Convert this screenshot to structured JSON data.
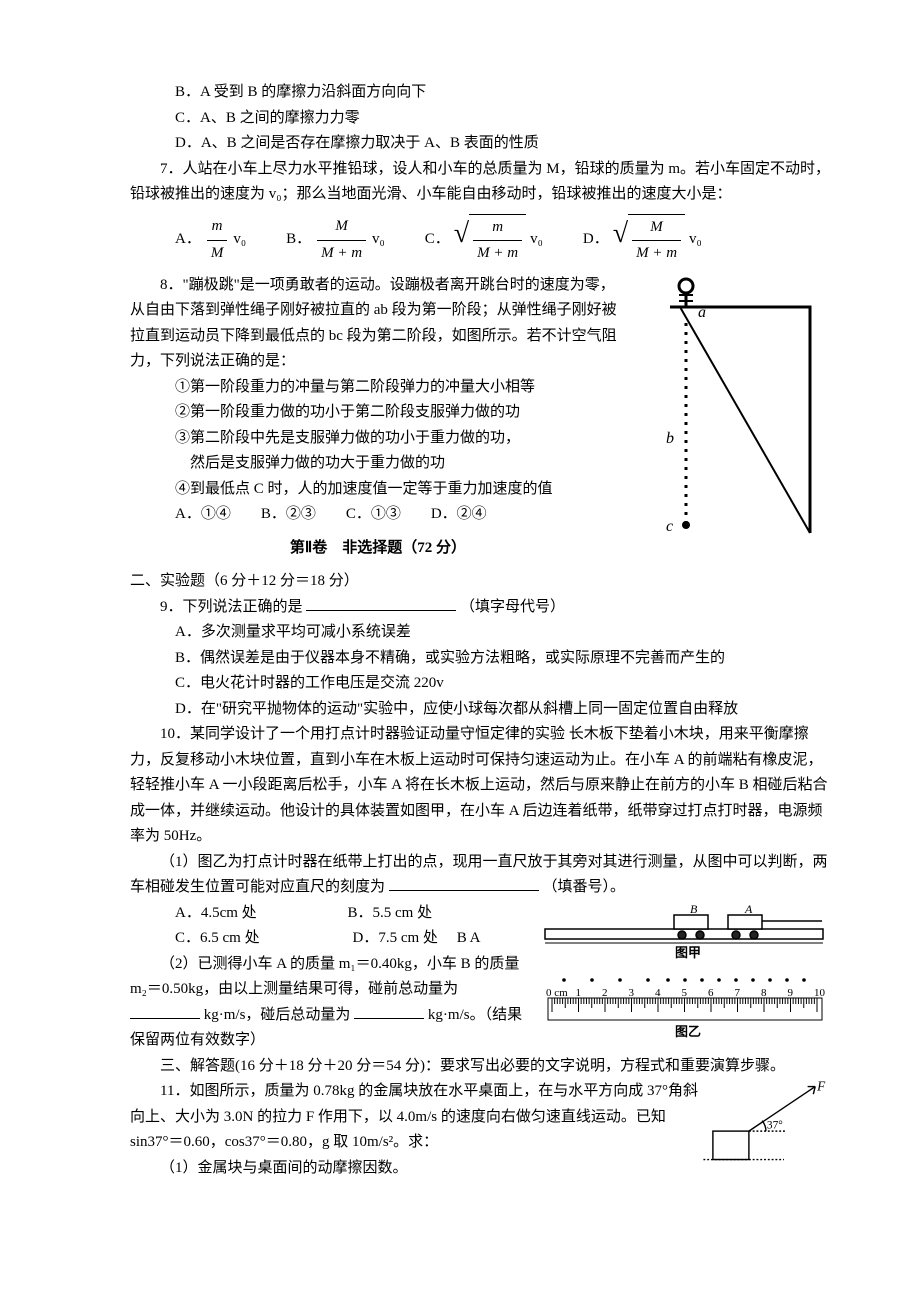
{
  "q6": {
    "B": "B．A 受到 B 的摩擦力沿斜面方向向下",
    "C": "C．A、B 之间的摩擦力力零",
    "D": "D．A、B 之间是否存在摩擦力取决于 A、B 表面的性质"
  },
  "q7": {
    "stem": "7．人站在小车上尽力水平推铅球，设人和小车的总质量为 M，铅球的质量为 m。若小车固定不动时，铅球被推出的速度为 v₀；那么当地面光滑、小车能自由移动时，铅球被推出的速度大小是：",
    "optA_label": "A．",
    "optB_label": "B．",
    "optC_label": "C．",
    "optD_label": "D．",
    "v0": "v₀",
    "A_num": "m",
    "A_den": "M",
    "B_num": "M",
    "B_den": "M + m",
    "C_num": "m",
    "C_den": "M + m",
    "D_num": "M",
    "D_den": "M + m"
  },
  "q8": {
    "stem1": "8．\"蹦极跳\"是一项勇敢者的运动。设蹦极者离开跳台时的速度为零，从自由下落到弹性绳子刚好被拉直的 ab 段为第一阶段；从弹性绳子刚好被拉直到运动员下降到最低点的 bc 段为第二阶段，如图所示。若不计空气阻力，下列说法正确的是：",
    "s1": "①第一阶段重力的冲量与第二阶段弹力的冲量大小相等",
    "s2": "②第一阶段重力做的功小于第二阶段支服弹力做的功",
    "s3": "③第二阶段中先是支服弹力做的功小于重力做的功，",
    "s3b": "然后是支服弹力做的功大于重力做的功",
    "s4": "④到最低点 C 时，人的加速度值一定等于重力加速度的值",
    "opts": "A．①④　　B．②③　　C．①③　　D．②④",
    "fig": {
      "label_a": "a",
      "label_b": "b",
      "label_c": "c",
      "stroke": "#000000",
      "fill": "#222222"
    }
  },
  "part2_title": "第Ⅱ卷　非选择题（72 分）",
  "sec2_head": "二、实验题（6 分＋12 分＝18 分）",
  "q9": {
    "stem": "9．下列说法正确的是",
    "tail": "（填字母代号）",
    "A": "A．多次测量求平均可减小系统误差",
    "B": "B．偶然误差是由于仪器本身不精确，或实验方法粗略，或实际原理不完善而产生的",
    "C": "C．电火花计时器的工作电压是交流 220v",
    "D": "D．在\"研究平抛物体的运动\"实验中，应使小球每次都从斜槽上同一固定位置自由释放"
  },
  "q10": {
    "stem": "10．某同学设计了一个用打点计时器验证动量守恒定律的实验 长木板下垫着小木块，用来平衡摩擦力，反复移动小木块位置，直到小车在木板上运动时可保持匀速运动为止。在小车 A 的前端粘有橡皮泥，轻轻推小车 A 一小段距离后松手，小车 A 将在长木板上运动，然后与原来静止在前方的小车 B 相碰后粘合成一体，并继续运动。他设计的具体装置如图甲，在小车 A 后边连着纸带，纸带穿过打点打时器，电源频率为 50Hz。",
    "p1": "（1）图乙为打点计时器在纸带上打出的点，现用一直尺放于其旁对其进行测量，从图中可以判断，两车相碰发生位置可能对应直尺的刻度为",
    "p1_tail": "（填番号）。",
    "optA": "A．4.5cm 处",
    "optB": "B．5.5 cm 处",
    "optC": "C．6.5 cm 处",
    "optD": "D．7.5 cm 处",
    "p2a": "（2）已测得小车 A 的质量 m₁＝0.40kg，小车 B 的质量 m₂＝0.50kg，由以上测量结果可得，碰前总动量为",
    "p2b": "kg·m/s，碰后总动量为",
    "p2c": "kg·m/s。（结果保留两位有效数字）",
    "fig": {
      "label_A": "A",
      "label_B": "B",
      "label_BA": "B A",
      "caption1": "图甲",
      "caption2": "图乙",
      "ruler_zero": "0 cm",
      "ruler_nums": [
        "1",
        "2",
        "3",
        "4",
        "5",
        "6",
        "7",
        "8",
        "9",
        "10"
      ],
      "track_color": "#000000",
      "bg": "#ffffff"
    }
  },
  "sec3_head": "三、解答题(16 分＋18 分＋20 分＝54 分)：要求写出必要的文字说明，方程式和重要演算步骤。",
  "q11": {
    "stem": "11．如图所示，质量为 0.78kg 的金属块放在水平桌面上，在与水平方向成 37°角斜向上、大小为 3.0N 的拉力 F 作用下，以 4.0m/s 的速度向右做匀速直线运动。已知 sin37°＝0.60，cos37°＝0.80，g 取 10m/s²。求：",
    "p1": "（1）金属块与桌面间的动摩擦因数。",
    "fig": {
      "F": "F",
      "ang": "37°",
      "stroke": "#000000"
    }
  }
}
